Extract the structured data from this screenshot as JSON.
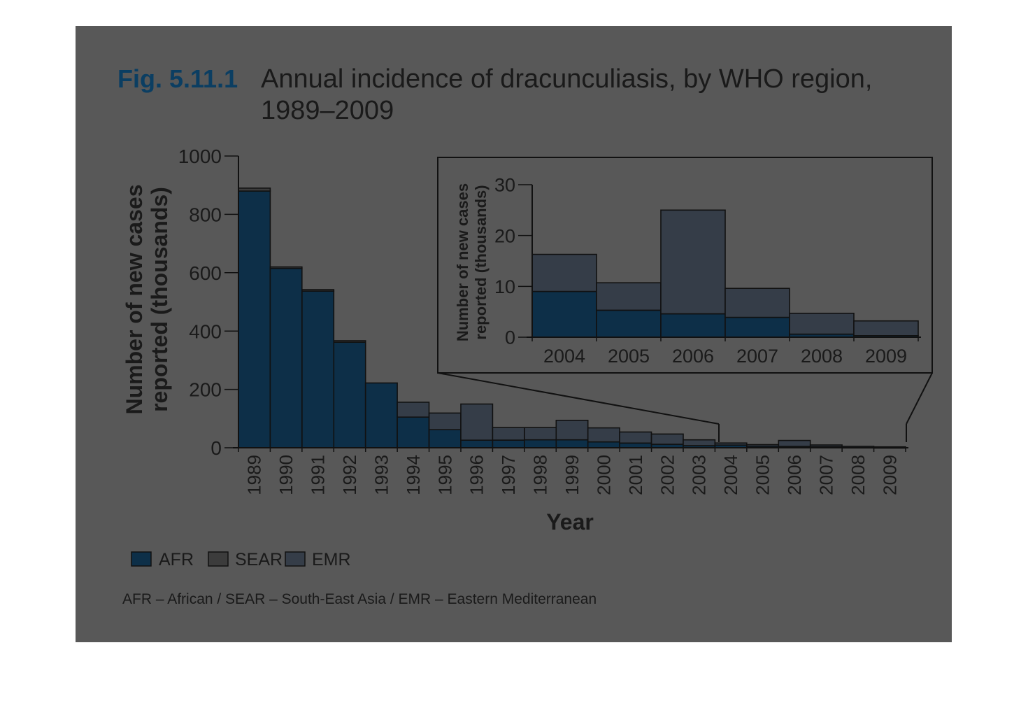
{
  "figure": {
    "number": "Fig. 5.11.1",
    "title_line1": "Annual incidence of dracunculiasis, by WHO region,",
    "title_line2": "1989–2009",
    "footnote": "AFR – African / SEAR – South-East Asia / EMR – Eastern Mediterranean"
  },
  "colors": {
    "panel": "#585858",
    "AFR": "#0d2f48",
    "SEAR": "#3c3c3c",
    "EMR": "#353d48",
    "figure_number": "#0b3e62",
    "figure_number_accent": "#00aeef",
    "highlight": "#1ab0f0",
    "text": "#1a1a1a"
  },
  "chart_data": [
    {
      "type": "bar",
      "stacked": true,
      "categories": [
        "1989",
        "1990",
        "1991",
        "1992",
        "1993",
        "1994",
        "1995",
        "1996",
        "1997",
        "1998",
        "1999",
        "2000",
        "2001",
        "2002",
        "2003",
        "2004",
        "2005",
        "2006",
        "2007",
        "2008",
        "2009"
      ],
      "series": [
        {
          "name": "AFR",
          "values": [
            880,
            615,
            537,
            362,
            222,
            105,
            62,
            26,
            26,
            27,
            27,
            20,
            16,
            12,
            7,
            9,
            5.3,
            4.6,
            3.9,
            0.6,
            0.3
          ]
        },
        {
          "name": "SEAR",
          "values": [
            10,
            5,
            5,
            5,
            0,
            0,
            0,
            0,
            0,
            0,
            0,
            0,
            0,
            0,
            0,
            0,
            0,
            0,
            0,
            0,
            0
          ]
        },
        {
          "name": "EMR",
          "values": [
            0,
            0,
            0,
            0,
            0,
            51,
            57,
            124,
            43,
            42,
            67,
            48,
            38,
            35,
            20,
            7.3,
            5.4,
            20.4,
            5.7,
            4.1,
            2.9
          ]
        }
      ],
      "xlabel": "Year",
      "ylabel": "Number of new cases reported (thousands)",
      "ylim": [
        0,
        1000
      ],
      "yticks": [
        "0",
        "200",
        "400",
        "600",
        "800",
        "1000"
      ],
      "legend": {
        "placement": "bottom-left",
        "entries": [
          "AFR",
          "SEAR",
          "EMR"
        ]
      }
    },
    {
      "type": "bar",
      "stacked": true,
      "inset": "zoom of 2004–2009",
      "categories": [
        "2004",
        "2005",
        "2006",
        "2007",
        "2008",
        "2009"
      ],
      "series": [
        {
          "name": "AFR",
          "values": [
            9,
            5.3,
            4.6,
            3.9,
            0.6,
            0.3
          ]
        },
        {
          "name": "SEAR",
          "values": [
            0,
            0,
            0,
            0,
            0,
            0
          ]
        },
        {
          "name": "EMR",
          "values": [
            7.3,
            5.4,
            20.4,
            5.7,
            4.1,
            2.9
          ]
        }
      ],
      "ylabel": "Number of new cases reported (thousands)",
      "ylim": [
        0,
        30
      ],
      "yticks": [
        "0",
        "10",
        "20",
        "30"
      ]
    }
  ]
}
